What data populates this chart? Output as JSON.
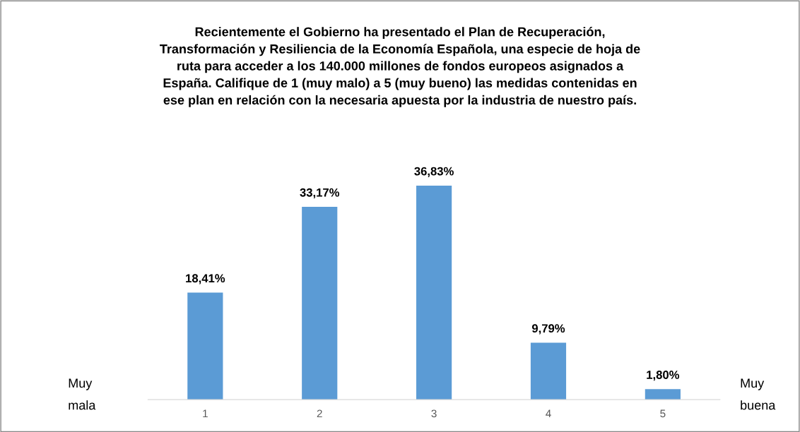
{
  "chart_data": {
    "type": "bar",
    "title": "Recientemente el Gobierno ha presentado el Plan de Recuperación,\nTransformación y Resiliencia de la Economía Española, una especie de hoja de\nruta para acceder a los 140.000 millones de fondos europeos asignados a\nEspaña. Califique de 1 (muy malo) a 5 (muy bueno) las medidas contenidas en\nese plan en relación con la necesaria apuesta por la industria de nuestro país.",
    "categories": [
      "1",
      "2",
      "3",
      "4",
      "5"
    ],
    "values": [
      18.41,
      33.17,
      36.83,
      9.79,
      1.8
    ],
    "value_labels": [
      "18,41%",
      "33,17%",
      "36,83%",
      "9,79%",
      "1,80%"
    ],
    "color": "#5b9bd5",
    "annotations": [
      "Muy\nmala",
      "Muy\nbuena"
    ],
    "grid": false,
    "legend": false
  }
}
